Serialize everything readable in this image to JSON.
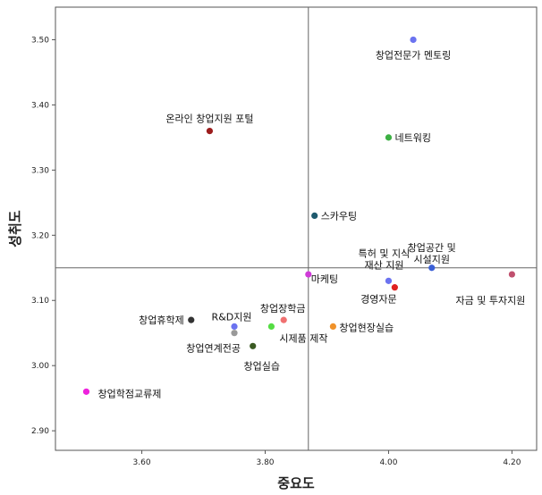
{
  "chart_data": {
    "type": "scatter",
    "xlabel": "중요도",
    "ylabel": "성취도",
    "xlim": [
      3.46,
      4.24
    ],
    "ylim": [
      2.87,
      3.55
    ],
    "xticks": [
      3.6,
      3.8,
      4.0,
      4.2
    ],
    "yticks": [
      2.9,
      3.0,
      3.1,
      3.2,
      3.3,
      3.4,
      3.5
    ],
    "xtick_labels": [
      "3.60",
      "3.80",
      "4.00",
      "4.20"
    ],
    "ytick_labels": [
      "2.90",
      "3.00",
      "3.10",
      "3.20",
      "3.30",
      "3.40",
      "3.50"
    ],
    "reference_lines": {
      "x": 3.87,
      "y": 3.15
    },
    "grid": false,
    "points": [
      {
        "label": "창업전문가 멘토링",
        "x": 4.04,
        "y": 3.5,
        "color": "#6b73f0"
      },
      {
        "label": "온라인 창업지원 포털",
        "x": 3.71,
        "y": 3.36,
        "color": "#9c1c1c"
      },
      {
        "label": "네트워킹",
        "x": 4.0,
        "y": 3.35,
        "color": "#3cb043"
      },
      {
        "label": "스카우팅",
        "x": 3.88,
        "y": 3.23,
        "color": "#1e5a6e"
      },
      {
        "label": "특허 및 지식 재산 지원",
        "x": 4.0,
        "y": 3.13,
        "color": "#6b73f0"
      },
      {
        "label": "창업공간 및 시설지원",
        "x": 4.07,
        "y": 3.15,
        "color": "#3a5fd6"
      },
      {
        "label": "자금 및 투자지원",
        "x": 4.2,
        "y": 3.14,
        "color": "#c0506e"
      },
      {
        "label": "마케팅",
        "x": 3.87,
        "y": 3.14,
        "color": "#d03ad8"
      },
      {
        "label": "경영자문",
        "x": 4.01,
        "y": 3.12,
        "color": "#e02020"
      },
      {
        "label": "창업휴학제",
        "x": 3.68,
        "y": 3.07,
        "color": "#333333"
      },
      {
        "label": "R&D지원",
        "x": 3.75,
        "y": 3.06,
        "color": "#6b73f0"
      },
      {
        "label": "창업장학금",
        "x": 3.83,
        "y": 3.07,
        "color": "#f07070"
      },
      {
        "label": "시제품 제작",
        "x": 3.81,
        "y": 3.06,
        "color": "#55dd44"
      },
      {
        "label": "창업현장실습",
        "x": 3.91,
        "y": 3.06,
        "color": "#f0922a"
      },
      {
        "label": "창업연계전공",
        "x": 3.75,
        "y": 3.05,
        "color": "#999999"
      },
      {
        "label": "창업실습",
        "x": 3.78,
        "y": 3.03,
        "color": "#3a5a22"
      },
      {
        "label": "창업학점교류제",
        "x": 3.51,
        "y": 2.96,
        "color": "#ee22dd"
      }
    ]
  }
}
